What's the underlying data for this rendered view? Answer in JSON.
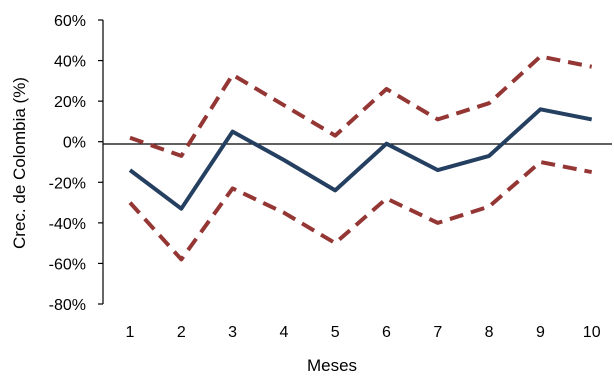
{
  "chart_data": {
    "type": "line",
    "title": "",
    "xlabel": "Meses",
    "ylabel": "Crec. de Colombia (%)",
    "x": [
      1,
      2,
      3,
      4,
      5,
      6,
      7,
      8,
      9,
      10
    ],
    "ylim": [
      -80,
      60
    ],
    "yticks": [
      60,
      40,
      20,
      0,
      -20,
      -40,
      -60,
      -80
    ],
    "ytick_labels": [
      "60%",
      "40%",
      "20%",
      "0%",
      "-20%",
      "-40%",
      "-60%",
      "-80%"
    ],
    "xtick_labels": [
      "1",
      "2",
      "3",
      "4",
      "5",
      "6",
      "7",
      "8",
      "9",
      "10"
    ],
    "grid": false,
    "legend": "none",
    "series": [
      {
        "values": [
          -14,
          -33,
          5,
          -9,
          -24,
          -1,
          -14,
          -7,
          16,
          11
        ],
        "color": "#243F60",
        "style": "solid"
      },
      {
        "values": [
          2,
          -7,
          33,
          18,
          3,
          26,
          11,
          19,
          42,
          37
        ],
        "color": "#943634",
        "style": "dashed"
      },
      {
        "values": [
          -30,
          -58,
          -23,
          -35,
          -50,
          -28,
          -40,
          -32,
          -10,
          -15
        ],
        "color": "#943634",
        "style": "dashed"
      }
    ]
  }
}
